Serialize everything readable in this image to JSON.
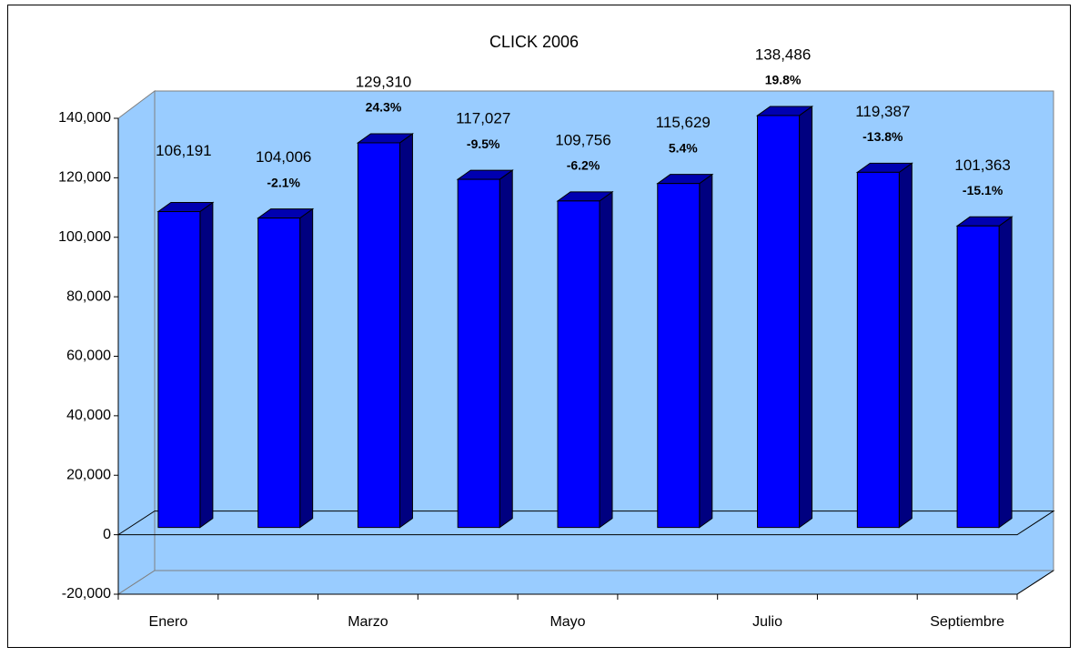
{
  "chart_data": {
    "type": "bar3d",
    "title": "CLICK 2006",
    "categories": [
      "Enero",
      null,
      "Marzo",
      null,
      "Mayo",
      null,
      "Julio",
      null,
      "Septiembre"
    ],
    "values": [
      106191,
      104006,
      129310,
      117027,
      109756,
      115629,
      138486,
      119387,
      101363
    ],
    "value_labels": [
      "106,191",
      "104,006",
      "129,310",
      "117,027",
      "109,756",
      "115,629",
      "138,486",
      "119,387",
      "101,363"
    ],
    "change_labels": [
      null,
      "-2.1%",
      "24.3%",
      "-9.5%",
      "-6.2%",
      "5.4%",
      "19.8%",
      "-13.8%",
      "-15.1%"
    ],
    "color": "#0000ff",
    "side_color": "#000080",
    "wall_color": "#99ccff",
    "ylim": [
      -20000,
      140000
    ],
    "yticks": [
      {
        "value": -20000,
        "label": "-20,000"
      },
      0,
      {
        "value": 20000,
        "label": "20,000"
      },
      {
        "value": 40000,
        "label": "40,000"
      },
      {
        "value": 60000,
        "label": "60,000"
      },
      {
        "value": 80000,
        "label": "80,000"
      },
      {
        "value": 100000,
        "label": "100,000"
      },
      {
        "value": 120000,
        "label": "120,000"
      },
      {
        "value": 140000,
        "label": "140,000"
      }
    ]
  }
}
